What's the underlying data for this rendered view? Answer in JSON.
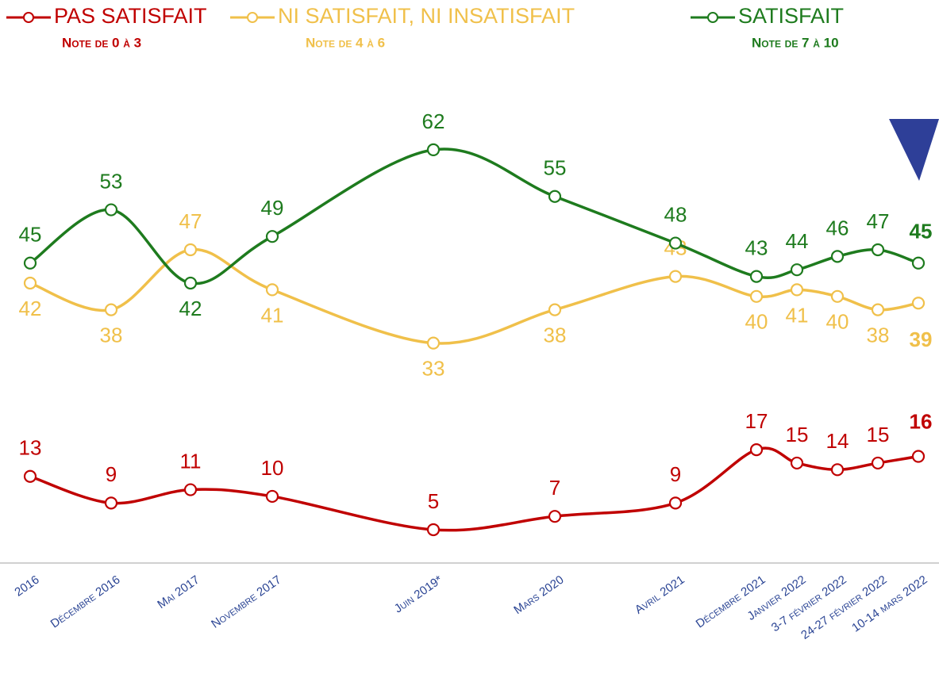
{
  "chart_data": {
    "type": "line",
    "categories": [
      "2016",
      "Décembre 2016",
      "Mai 2017",
      "Novembre 2017",
      "Juin 2019*",
      "Mars 2020",
      "Avril 2021",
      "Décembre 2021",
      "Janvier 2022",
      "3-7 février 2022",
      "24-27 février 2022",
      "10-14 mars 2022"
    ],
    "series": [
      {
        "name": "PAS SATISFAIT",
        "note": "Note de 0 à 3",
        "color": "#c00000",
        "values": [
          13,
          9,
          11,
          10,
          5,
          7,
          9,
          17,
          15,
          14,
          15,
          16
        ]
      },
      {
        "name": "NI SATISFAIT, NI INSATISFAIT",
        "note": "Note de 4 à 6",
        "color": "#f0c04a",
        "values": [
          42,
          38,
          47,
          41,
          33,
          38,
          43,
          40,
          41,
          40,
          38,
          39
        ]
      },
      {
        "name": "SATISFAIT",
        "note": "Note de 7 à 10",
        "color": "#1e7b1e",
        "values": [
          45,
          53,
          42,
          49,
          62,
          55,
          48,
          43,
          44,
          46,
          47,
          45
        ]
      }
    ],
    "ylim": [
      0,
      84
    ]
  }
}
